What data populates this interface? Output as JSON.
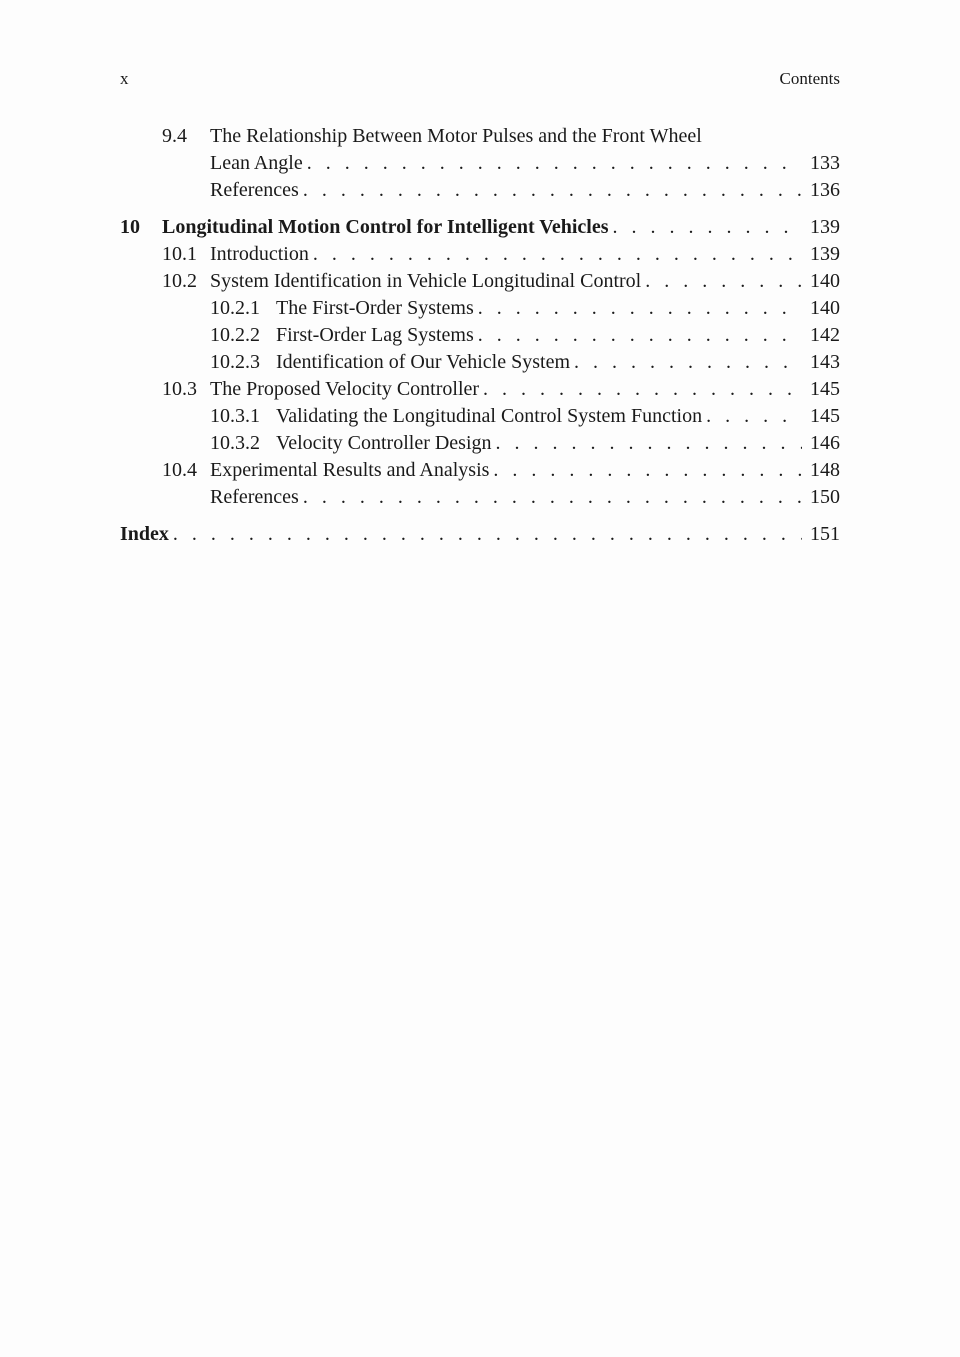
{
  "header": {
    "page_label": "x",
    "section_label": "Contents"
  },
  "toc": {
    "lines": [
      {
        "chapter": "",
        "sec": "9.4",
        "subsec": "",
        "title": "The Relationship Between Motor Pulses and the Front Wheel",
        "page": "",
        "bold": false,
        "leader": false,
        "gap": false
      },
      {
        "chapter": "",
        "sec": "",
        "subsec": "",
        "title": "Lean Angle",
        "page": "133",
        "bold": false,
        "leader": true,
        "gap": false,
        "indent_as_sec_body": true
      },
      {
        "chapter": "",
        "sec": "",
        "subsec": "",
        "title": "References",
        "page": "136",
        "bold": false,
        "leader": true,
        "gap": false,
        "indent_as_sec_body": true
      },
      {
        "chapter": "10",
        "sec": "",
        "subsec": "",
        "title": "Longitudinal Motion Control for Intelligent Vehicles",
        "page": "139",
        "bold": true,
        "leader": true,
        "gap": true
      },
      {
        "chapter": "",
        "sec": "10.1",
        "subsec": "",
        "title": "Introduction",
        "page": "139",
        "bold": false,
        "leader": true,
        "gap": false
      },
      {
        "chapter": "",
        "sec": "10.2",
        "subsec": "",
        "title": "System Identification in Vehicle Longitudinal Control",
        "page": "140",
        "bold": false,
        "leader": true,
        "gap": false
      },
      {
        "chapter": "",
        "sec": "",
        "subsec": "10.2.1",
        "title": "The First-Order Systems",
        "page": "140",
        "bold": false,
        "leader": true,
        "gap": false
      },
      {
        "chapter": "",
        "sec": "",
        "subsec": "10.2.2",
        "title": "First-Order Lag Systems",
        "page": "142",
        "bold": false,
        "leader": true,
        "gap": false
      },
      {
        "chapter": "",
        "sec": "",
        "subsec": "10.2.3",
        "title": "Identification of Our Vehicle System",
        "page": "143",
        "bold": false,
        "leader": true,
        "gap": false
      },
      {
        "chapter": "",
        "sec": "10.3",
        "subsec": "",
        "title": "The Proposed Velocity Controller",
        "page": "145",
        "bold": false,
        "leader": true,
        "gap": false
      },
      {
        "chapter": "",
        "sec": "",
        "subsec": "10.3.1",
        "title": "Validating the Longitudinal Control System Function",
        "page": "145",
        "bold": false,
        "leader": true,
        "gap": false
      },
      {
        "chapter": "",
        "sec": "",
        "subsec": "10.3.2",
        "title": "Velocity Controller Design",
        "page": "146",
        "bold": false,
        "leader": true,
        "gap": false
      },
      {
        "chapter": "",
        "sec": "10.4",
        "subsec": "",
        "title": "Experimental Results and Analysis",
        "page": "148",
        "bold": false,
        "leader": true,
        "gap": false
      },
      {
        "chapter": "",
        "sec": "",
        "subsec": "",
        "title": "References",
        "page": "150",
        "bold": false,
        "leader": true,
        "gap": false,
        "indent_as_sec_body": true
      }
    ],
    "index": {
      "label": "Index",
      "page": "151"
    }
  },
  "leader_dots": ". . . . . . . . . . . . . . . . . . . . . . . . . . . . . . . . . . . . . . . . . . . . . . . . . . . . . . . . . . . ."
}
